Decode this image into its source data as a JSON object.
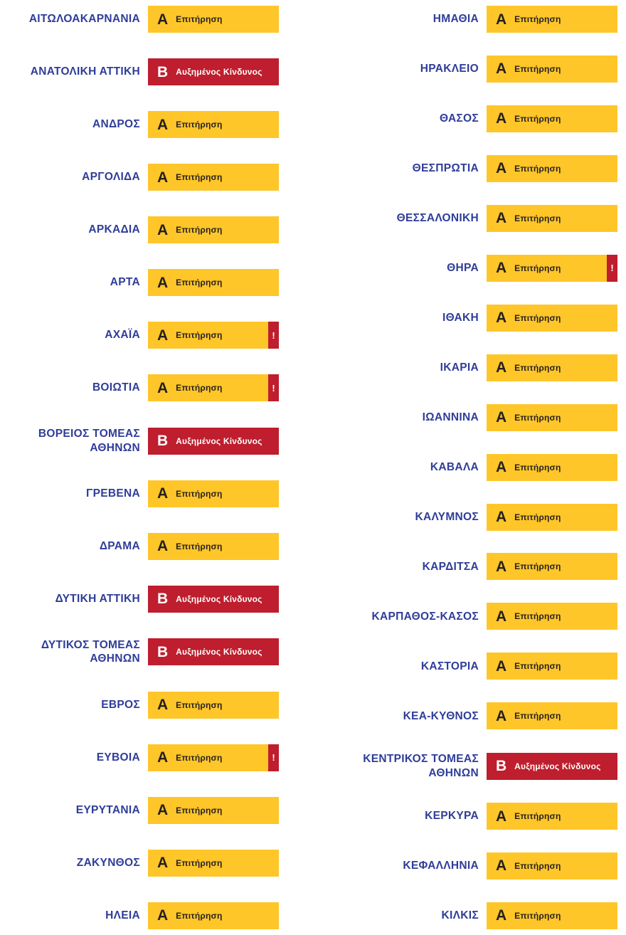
{
  "colors": {
    "region_text": "#2F3D99",
    "level_a_bg": "#FFC629",
    "level_a_text": "#231F20",
    "level_b_bg": "#BE1E2D",
    "level_b_text": "#FFFFFF",
    "alert_bg": "#BE1E2D",
    "alert_text": "#FFFFFF"
  },
  "levels": {
    "A": {
      "letter": "Α",
      "label": "Επιτήρηση"
    },
    "B": {
      "letter": "Β",
      "label": "Αυξημένος Κίνδυνος"
    }
  },
  "alert_icon": {
    "symbol": "!"
  },
  "columns": [
    {
      "rows": [
        {
          "region": "ΑΙΤΩΛΟΑΚΑΡΝΑΝΙΑ",
          "level": "A",
          "alert": false
        },
        {
          "region": "ΑΝΑΤΟΛΙΚΗ ΑΤΤΙΚΗ",
          "level": "B",
          "alert": false
        },
        {
          "region": "ΑΝΔΡΟΣ",
          "level": "A",
          "alert": false
        },
        {
          "region": "ΑΡΓΟΛΙΔΑ",
          "level": "A",
          "alert": false
        },
        {
          "region": "ΑΡΚΑΔΙΑ",
          "level": "A",
          "alert": false
        },
        {
          "region": "ΑΡΤΑ",
          "level": "A",
          "alert": false
        },
        {
          "region": "ΑΧΑΪΑ",
          "level": "A",
          "alert": true
        },
        {
          "region": "ΒΟΙΩΤΙΑ",
          "level": "A",
          "alert": true
        },
        {
          "region": "ΒΟΡΕΙΟΣ ΤΟΜΕΑΣ ΑΘΗΝΩΝ",
          "level": "B",
          "alert": false
        },
        {
          "region": "ΓΡΕΒΕΝΑ",
          "level": "A",
          "alert": false
        },
        {
          "region": "ΔΡΑΜΑ",
          "level": "A",
          "alert": false
        },
        {
          "region": "ΔΥΤΙΚΗ ΑΤΤΙΚΗ",
          "level": "B",
          "alert": false
        },
        {
          "region": "ΔΥΤΙΚΟΣ ΤΟΜΕΑΣ ΑΘΗΝΩΝ",
          "level": "B",
          "alert": false
        },
        {
          "region": "ΕΒΡΟΣ",
          "level": "A",
          "alert": false
        },
        {
          "region": "ΕΥΒΟΙΑ",
          "level": "A",
          "alert": true
        },
        {
          "region": "ΕΥΡΥΤΑΝΙΑ",
          "level": "A",
          "alert": false
        },
        {
          "region": "ΖΑΚΥΝΘΟΣ",
          "level": "A",
          "alert": false
        },
        {
          "region": "ΗΛΕΙΑ",
          "level": "A",
          "alert": false
        }
      ]
    },
    {
      "rows": [
        {
          "region": "ΗΜΑΘΙΑ",
          "level": "A",
          "alert": false
        },
        {
          "region": "ΗΡΑΚΛΕΙΟ",
          "level": "A",
          "alert": false
        },
        {
          "region": "ΘΑΣΟΣ",
          "level": "A",
          "alert": false
        },
        {
          "region": "ΘΕΣΠΡΩΤΙΑ",
          "level": "A",
          "alert": false
        },
        {
          "region": "ΘΕΣΣΑΛΟΝΙΚΗ",
          "level": "A",
          "alert": false
        },
        {
          "region": "ΘΗΡΑ",
          "level": "A",
          "alert": true
        },
        {
          "region": "ΙΘΑΚΗ",
          "level": "A",
          "alert": false
        },
        {
          "region": "ΙΚΑΡΙΑ",
          "level": "A",
          "alert": false
        },
        {
          "region": "ΙΩΑΝΝΙΝΑ",
          "level": "A",
          "alert": false
        },
        {
          "region": "ΚΑΒΑΛΑ",
          "level": "A",
          "alert": false
        },
        {
          "region": "ΚΑΛΥΜΝΟΣ",
          "level": "A",
          "alert": false
        },
        {
          "region": "ΚΑΡΔΙΤΣΑ",
          "level": "A",
          "alert": false
        },
        {
          "region": "ΚΑΡΠΑΘΟΣ-ΚΑΣΟΣ",
          "level": "A",
          "alert": false
        },
        {
          "region": "ΚΑΣΤΟΡΙΑ",
          "level": "A",
          "alert": false
        },
        {
          "region": "ΚΕΑ-ΚΥΘΝΟΣ",
          "level": "A",
          "alert": false
        },
        {
          "region": "ΚΕΝΤΡΙΚΟΣ ΤΟΜΕΑΣ ΑΘΗΝΩΝ",
          "level": "B",
          "alert": false
        },
        {
          "region": "ΚΕΡΚΥΡΑ",
          "level": "A",
          "alert": false
        },
        {
          "region": "ΚΕΦΑΛΛΗΝΙΑ",
          "level": "A",
          "alert": false
        },
        {
          "region": "ΚΙΛΚΙΣ",
          "level": "A",
          "alert": false
        }
      ]
    }
  ]
}
